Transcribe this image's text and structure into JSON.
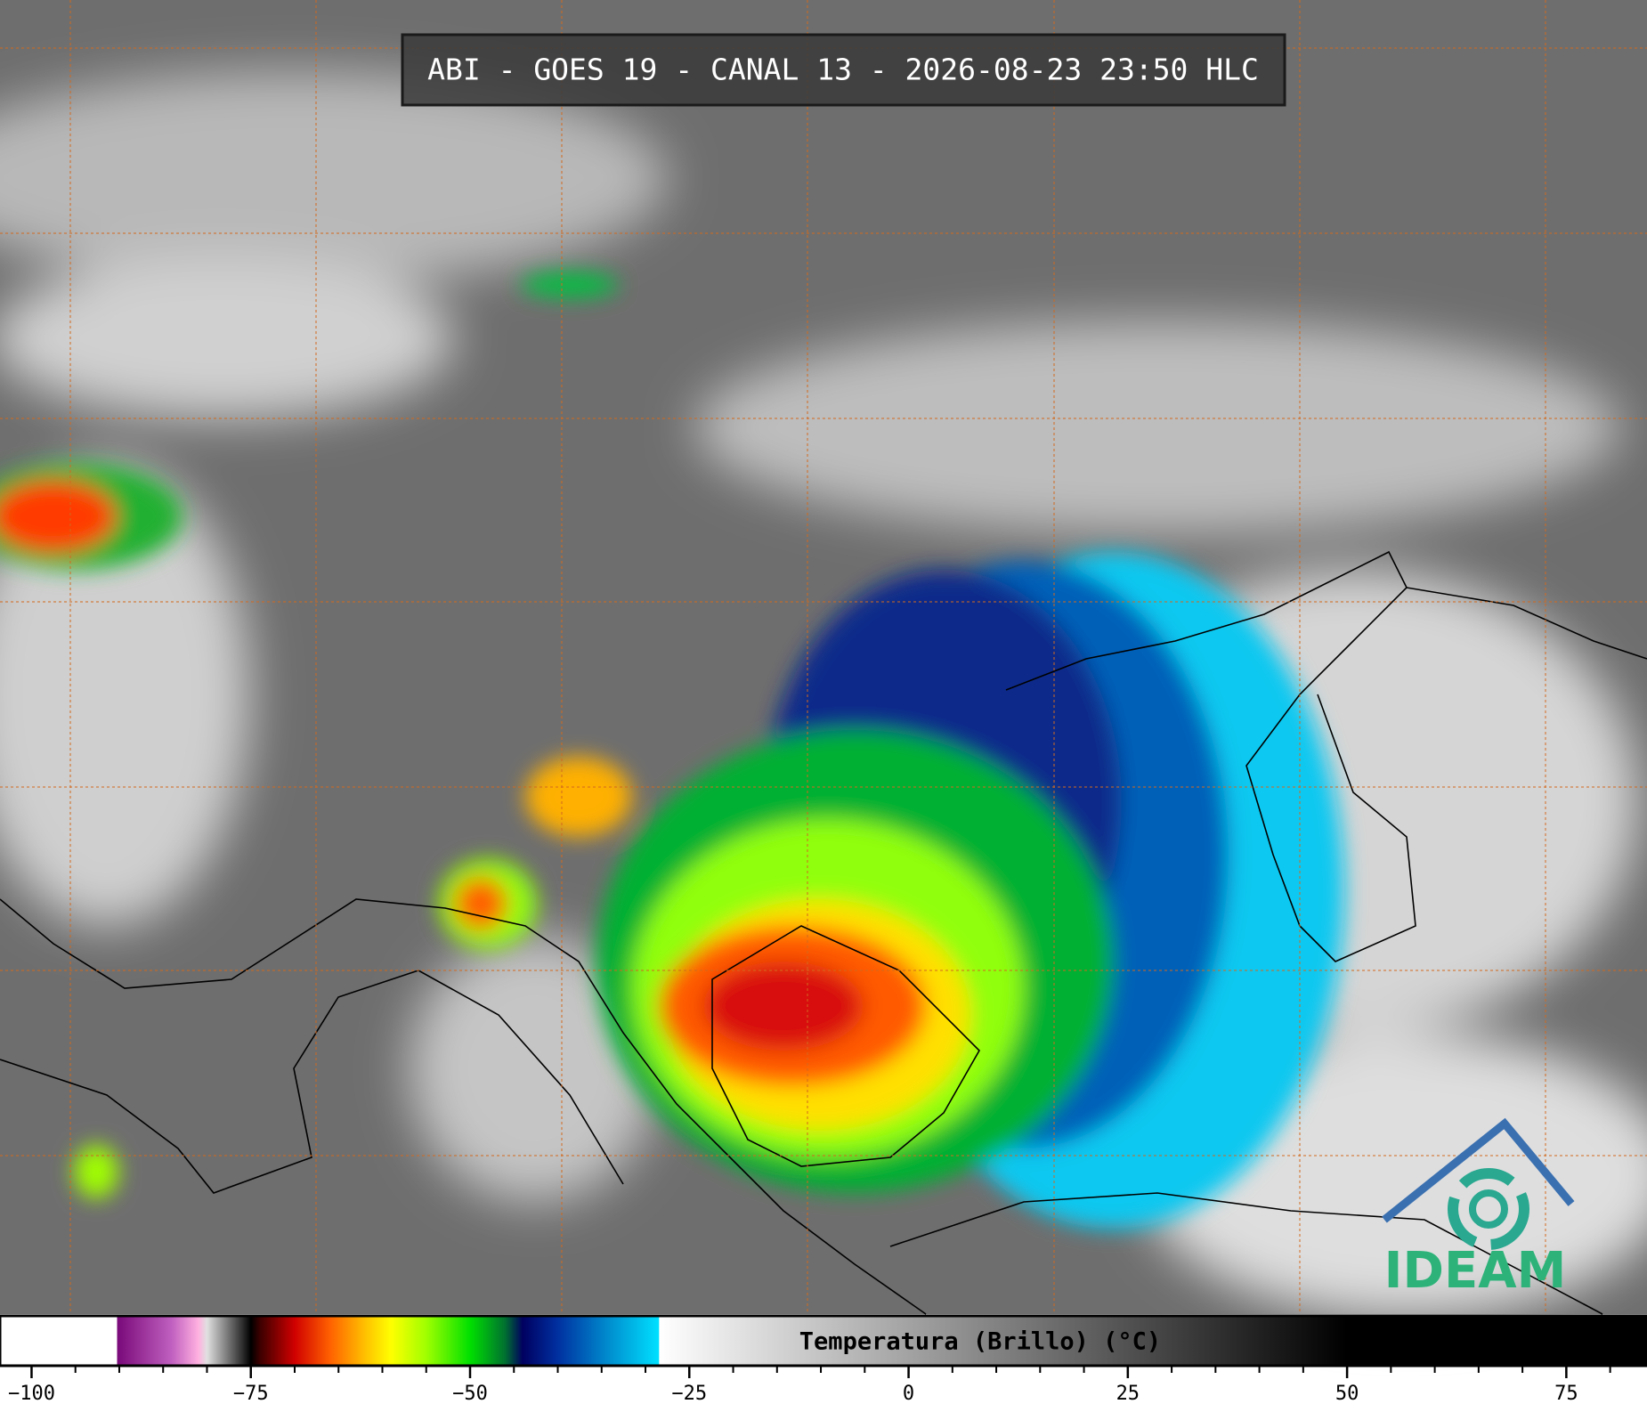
{
  "header": {
    "title": "ABI - GOES 19 - CANAL 13 - 2026-08-23 23:50 HLC"
  },
  "colorbar": {
    "label": "Temperatura (Brillo) (°C)",
    "range": [
      -103.6,
      84.2
    ],
    "ticks": [
      {
        "value": -100,
        "label": "−100"
      },
      {
        "value": -75,
        "label": "−75"
      },
      {
        "value": -50,
        "label": "−50"
      },
      {
        "value": -25,
        "label": "−25"
      },
      0,
      25,
      50,
      75
    ],
    "minor_step": 5,
    "stops": [
      [
        -103.6,
        "#ffffff"
      ],
      [
        -90.3,
        "#ffffff"
      ],
      [
        -90.2,
        "#7a0a7a"
      ],
      [
        -84,
        "#c060c0"
      ],
      [
        -81,
        "#ffb0e0"
      ],
      [
        -80,
        "#e0e0e0"
      ],
      [
        -76,
        "#303030"
      ],
      [
        -75,
        "#000000"
      ],
      [
        -74,
        "#3a0000"
      ],
      [
        -70,
        "#d00000"
      ],
      [
        -66,
        "#ff6000"
      ],
      [
        -62,
        "#ffc000"
      ],
      [
        -59,
        "#ffff00"
      ],
      [
        -55,
        "#a0ff00"
      ],
      [
        -50,
        "#00e000"
      ],
      [
        -46,
        "#007030"
      ],
      [
        -44,
        "#000060"
      ],
      [
        -40,
        "#0030a0"
      ],
      [
        -34,
        "#0090d0"
      ],
      [
        -28.5,
        "#00e0ff"
      ],
      [
        -28.4,
        "#ffffff"
      ],
      [
        50,
        "#000000"
      ],
      [
        84.2,
        "#000000"
      ]
    ]
  },
  "logo": {
    "text": "IDEAM"
  }
}
